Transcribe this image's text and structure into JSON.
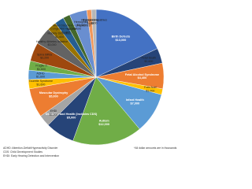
{
  "chart_data": {
    "type": "pie",
    "categories": [
      "Birth Defects",
      "Fetal Death",
      "Fetal Alcohol Syndrome",
      "Folic Acid",
      "Infant Health",
      "Autism",
      "Disability and Health (Includes CDS)",
      "EHDI",
      "Muscular Dystrophy",
      "Tourette Syndrome",
      "ADHD",
      "Fragile X",
      "Spina Bifida",
      "Healthy Athletes Initiative",
      "Mobility Disabilities",
      "Congenital Heart Failure",
      "Mood Disorders - Unspecified",
      "Hemophilia",
      "Thalassemia",
      "Hemoglobinopathies"
    ],
    "values": [
      13000,
      2600,
      4400,
      1000,
      7000,
      12000,
      5000,
      2000,
      5000,
      1600,
      1600,
      1600,
      3200,
      3000,
      1600,
      1600,
      1200,
      3000,
      800,
      800
    ],
    "value_labels": [
      "$13,000",
      "$2,600",
      "$4,400",
      "$1,000",
      "$7,000",
      "$12,000",
      "$5,000",
      "$2,000",
      "$5,000",
      "$1,600",
      "$1,600",
      "$1,600",
      "$3,200",
      "$3,000",
      "$1,600",
      "$1,600",
      "$1,200",
      "$3,000",
      "$800",
      "$800"
    ],
    "colors": [
      "#4472c4",
      "#264478",
      "#ed7d31",
      "#ffc000",
      "#5b9bd5",
      "#70ad47",
      "#264478",
      "#a5a5a5",
      "#ed7d31",
      "#ffc000",
      "#5b9bd5",
      "#70ad47",
      "#9e480e",
      "#636363",
      "#997300",
      "#255e91",
      "#43682b",
      "#698ed0",
      "#f1975a",
      "#b7b7b7"
    ],
    "notes": [
      "ADHD: Attention-Deficit/Hyperactivity Disorder",
      "CDS: Child Development Studies",
      "EHDI: Early Hearing Detection and Intervention"
    ],
    "footnote": "*All dollar amounts are in thousands"
  }
}
